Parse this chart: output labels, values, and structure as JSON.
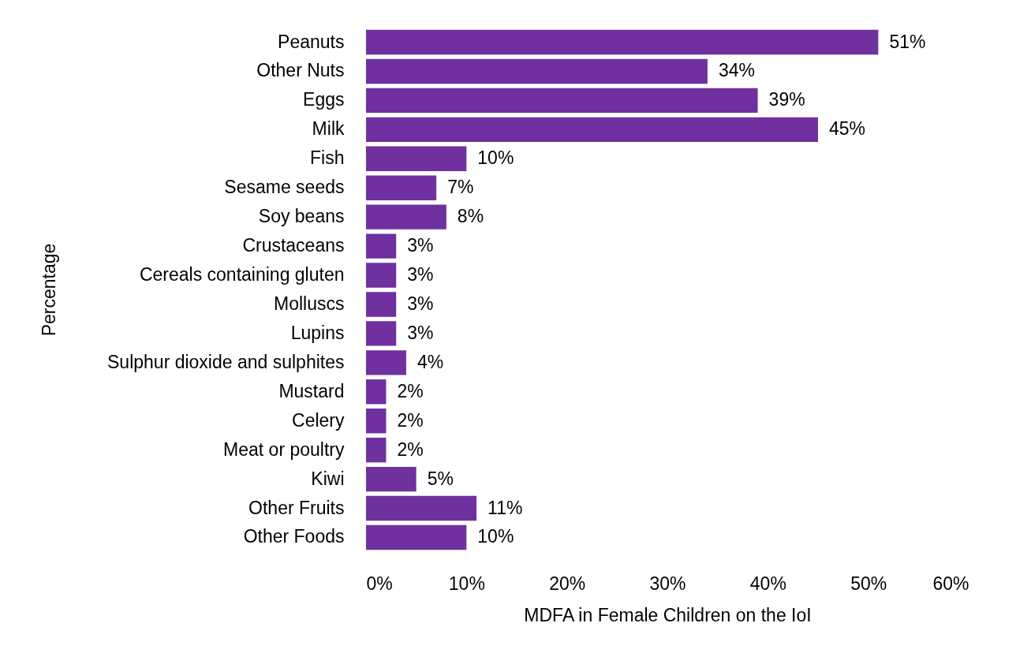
{
  "chart_data": {
    "type": "bar",
    "orientation": "horizontal",
    "xlabel": "MDFA in Female Children on the IoI",
    "ylabel": "Percentage",
    "categories": [
      "Peanuts",
      "Other Nuts",
      "Eggs",
      "Milk",
      "Fish",
      "Sesame seeds",
      "Soy beans",
      "Crustaceans",
      "Cereals containing gluten",
      "Molluscs",
      "Lupins",
      "Sulphur dioxide and sulphites",
      "Mustard",
      "Celery",
      "Meat or poultry",
      "Kiwi",
      "Other Fruits",
      "Other Foods"
    ],
    "values": [
      51,
      34,
      39,
      45,
      10,
      7,
      8,
      3,
      3,
      3,
      3,
      4,
      2,
      2,
      2,
      5,
      11,
      10
    ],
    "value_labels": [
      "51%",
      "34%",
      "39%",
      "45%",
      "10%",
      "7%",
      "8%",
      "3%",
      "3%",
      "3%",
      "3%",
      "4%",
      "2%",
      "2%",
      "2%",
      "5%",
      "11%",
      "10%"
    ],
    "color": "#7030a0",
    "xlim": [
      0,
      60
    ],
    "xticks": [
      {
        "value": 0,
        "label": "0%"
      },
      {
        "value": 10,
        "label": "10%"
      },
      {
        "value": 20,
        "label": "20%"
      },
      {
        "value": 30,
        "label": "30%"
      },
      {
        "value": 40,
        "label": "40%"
      },
      {
        "value": 50,
        "label": "50%"
      },
      {
        "value": 60,
        "label": "60%"
      }
    ]
  }
}
